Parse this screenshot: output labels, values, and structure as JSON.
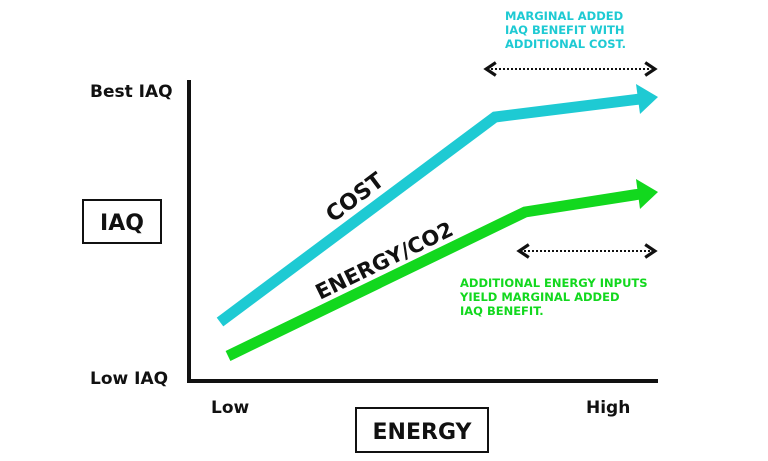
{
  "y_axis": {
    "label": "IAQ",
    "top_label": "Best IAQ",
    "bottom_label": "Low IAQ"
  },
  "x_axis": {
    "label": "ENERGY",
    "left_label": "Low",
    "right_label": "High"
  },
  "lines": {
    "cost": {
      "label": "COST",
      "color": "#1ECAD3"
    },
    "energy": {
      "label": "ENERGY/CO2",
      "color": "#12D81E"
    }
  },
  "annotations": {
    "cost_note": [
      "MARGINAL ADDED",
      "IAQ BENEFIT WITH",
      "ADDITIONAL COST."
    ],
    "energy_note": [
      "ADDITIONAL ENERGY INPUTS",
      "YIELD MARGINAL ADDED",
      "IAQ BENEFIT."
    ]
  }
}
